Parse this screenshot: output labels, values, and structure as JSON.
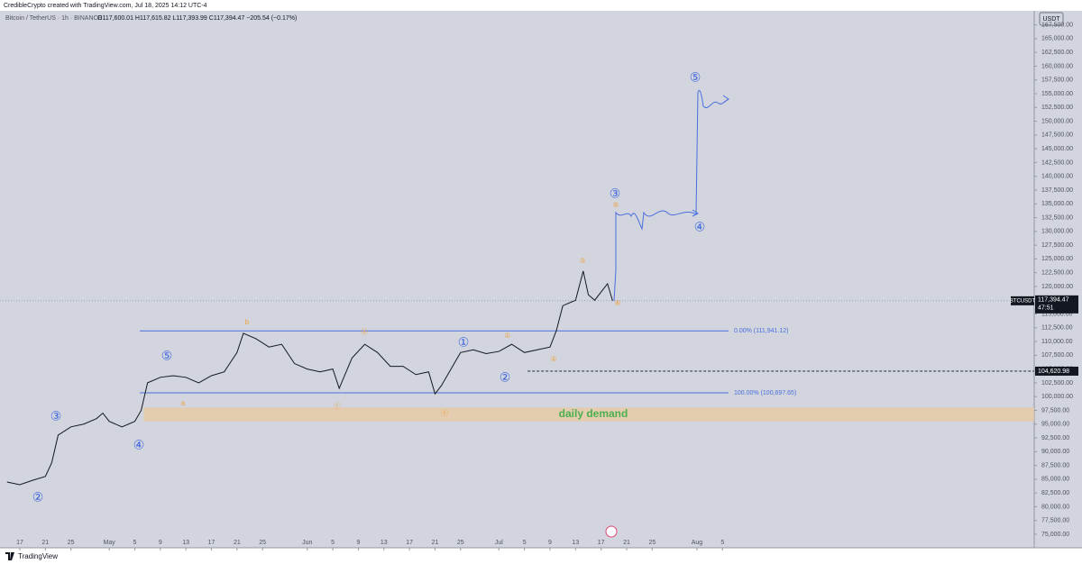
{
  "chart_data": {
    "type": "line",
    "credit": "CredibleCrypto created with TradingView.com, Jul 18, 2025 14:12 UTC-4",
    "title": "Bitcoin / TetherUS · 1h · BINANCE",
    "ohlc": "O117,600.01 H117,615.82 L117,393.99 C117,394.47 −205.54 (−0.17%)",
    "currency": "USDT",
    "brand": "TradingView",
    "series": [
      {
        "name": "BTCUSDT",
        "color": "#131722",
        "x": [
          -2,
          0,
          2,
          4,
          5,
          6,
          8,
          10,
          12,
          13,
          14,
          16,
          18,
          19,
          20,
          22,
          24,
          26,
          28,
          30,
          32,
          34,
          35,
          37,
          39,
          41,
          43,
          45,
          47,
          49,
          50,
          52,
          54,
          56,
          58,
          60,
          62,
          64,
          65,
          66,
          68,
          69,
          71,
          73,
          75,
          77,
          79,
          81,
          83,
          84,
          85,
          87,
          88.2,
          89,
          90,
          91,
          92,
          92.8
        ],
        "values": [
          84500,
          84000,
          84800,
          85500,
          88000,
          93000,
          94500,
          95000,
          96000,
          97000,
          95500,
          94500,
          95500,
          97500,
          102500,
          103500,
          103800,
          103500,
          102500,
          103800,
          104500,
          108000,
          111500,
          110500,
          109000,
          109500,
          106000,
          105000,
          104500,
          105000,
          101500,
          107000,
          109500,
          108000,
          105500,
          105500,
          104000,
          104500,
          100500,
          102000,
          106000,
          108000,
          108500,
          107800,
          108200,
          109500,
          108000,
          108500,
          109000,
          112000,
          116500,
          117500,
          122800,
          118500,
          117500,
          119000,
          120500,
          117394.47
        ]
      }
    ],
    "price_tag": {
      "label": "117,394.47",
      "countdown": "47:51"
    },
    "levels": [
      {
        "label": "0.00% (111,941.12)",
        "value": 111941.12,
        "color": "#4a6ee0"
      },
      {
        "label": "100.00% (100,697.65)",
        "value": 100697.65,
        "color": "#4a6ee0"
      }
    ],
    "dashed_level": {
      "label": "104,620.98",
      "value": 104620.98
    },
    "zone": {
      "label": "daily demand",
      "range": [
        95500,
        98000
      ],
      "color": "#e8c9a3"
    },
    "annotations": [
      "②",
      "③",
      "④",
      "⑤",
      "①",
      "②",
      "③",
      "④",
      "⑤",
      "b",
      "a",
      "ⓓ",
      "ⓒ",
      "ⓔ",
      "①",
      "②",
      "③",
      "④",
      "⑤"
    ],
    "ylim": [
      72550,
      170050
    ],
    "yticks": [
      {
        "value": 75000,
        "label": "75,000.00"
      },
      {
        "value": 77500,
        "label": "77,500.00"
      },
      {
        "value": 80000,
        "label": "80,000.00"
      },
      {
        "value": 82500,
        "label": "82,500.00"
      },
      {
        "value": 85000,
        "label": "85,000.00"
      },
      {
        "value": 87500,
        "label": "87,500.00"
      },
      {
        "value": 90000,
        "label": "90,000.00"
      },
      {
        "value": 92500,
        "label": "92,500.00"
      },
      {
        "value": 95000,
        "label": "95,000.00"
      },
      {
        "value": 97500,
        "label": "97,500.00"
      },
      {
        "value": 100000,
        "label": "100,000.00"
      },
      {
        "value": 102500,
        "label": "102,500.00"
      },
      {
        "value": 105000,
        "label": "105,000.00"
      },
      {
        "value": 107500,
        "label": "107,500.00"
      },
      {
        "value": 110000,
        "label": "110,000.00"
      },
      {
        "value": 112500,
        "label": "112,500.00"
      },
      {
        "value": 115000,
        "label": "115,000.00"
      },
      {
        "value": 117500,
        "label": "117,500.00"
      },
      {
        "value": 120000,
        "label": "120,000.00"
      },
      {
        "value": 122500,
        "label": "122,500.00"
      },
      {
        "value": 125000,
        "label": "125,000.00"
      },
      {
        "value": 127500,
        "label": "127,500.00"
      },
      {
        "value": 130000,
        "label": "130,000.00"
      },
      {
        "value": 132500,
        "label": "132,500.00"
      },
      {
        "value": 135000,
        "label": "135,000.00"
      },
      {
        "value": 137500,
        "label": "137,500.00"
      },
      {
        "value": 140000,
        "label": "140,000.00"
      },
      {
        "value": 142500,
        "label": "142,500.00"
      },
      {
        "value": 145000,
        "label": "145,000.00"
      },
      {
        "value": 147500,
        "label": "147,500.00"
      },
      {
        "value": 150000,
        "label": "150,000.00"
      },
      {
        "value": 152500,
        "label": "152,500.00"
      },
      {
        "value": 155000,
        "label": "155,000.00"
      },
      {
        "value": 157500,
        "label": "157,500.00"
      },
      {
        "value": 160000,
        "label": "160,000.00"
      },
      {
        "value": 162500,
        "label": "162,500.00"
      },
      {
        "value": 165000,
        "label": "165,000.00"
      },
      {
        "value": 167500,
        "label": "167,500.00"
      }
    ],
    "xlim": [
      -3.1,
      158.8
    ],
    "xticks": [
      {
        "value": 0,
        "label": "17"
      },
      {
        "value": 4,
        "label": "21"
      },
      {
        "value": 8,
        "label": "25"
      },
      {
        "value": 14,
        "label": "May"
      },
      {
        "value": 18,
        "label": "5"
      },
      {
        "value": 22,
        "label": "9"
      },
      {
        "value": 26,
        "label": "13"
      },
      {
        "value": 30,
        "label": "17"
      },
      {
        "value": 34,
        "label": "21"
      },
      {
        "value": 38,
        "label": "25"
      },
      {
        "value": 45,
        "label": "Jun"
      },
      {
        "value": 49,
        "label": "5"
      },
      {
        "value": 53,
        "label": "9"
      },
      {
        "value": 57,
        "label": "13"
      },
      {
        "value": 61,
        "label": "17"
      },
      {
        "value": 65,
        "label": "21"
      },
      {
        "value": 69,
        "label": "25"
      },
      {
        "value": 75,
        "label": "Jul"
      },
      {
        "value": 79,
        "label": "5"
      },
      {
        "value": 83,
        "label": "9"
      },
      {
        "value": 87,
        "label": "13"
      },
      {
        "value": 91,
        "label": "17"
      },
      {
        "value": 95,
        "label": "21"
      },
      {
        "value": 99,
        "label": "25"
      },
      {
        "value": 106,
        "label": "Aug"
      },
      {
        "value": 110,
        "label": "5"
      }
    ],
    "grid": false
  }
}
